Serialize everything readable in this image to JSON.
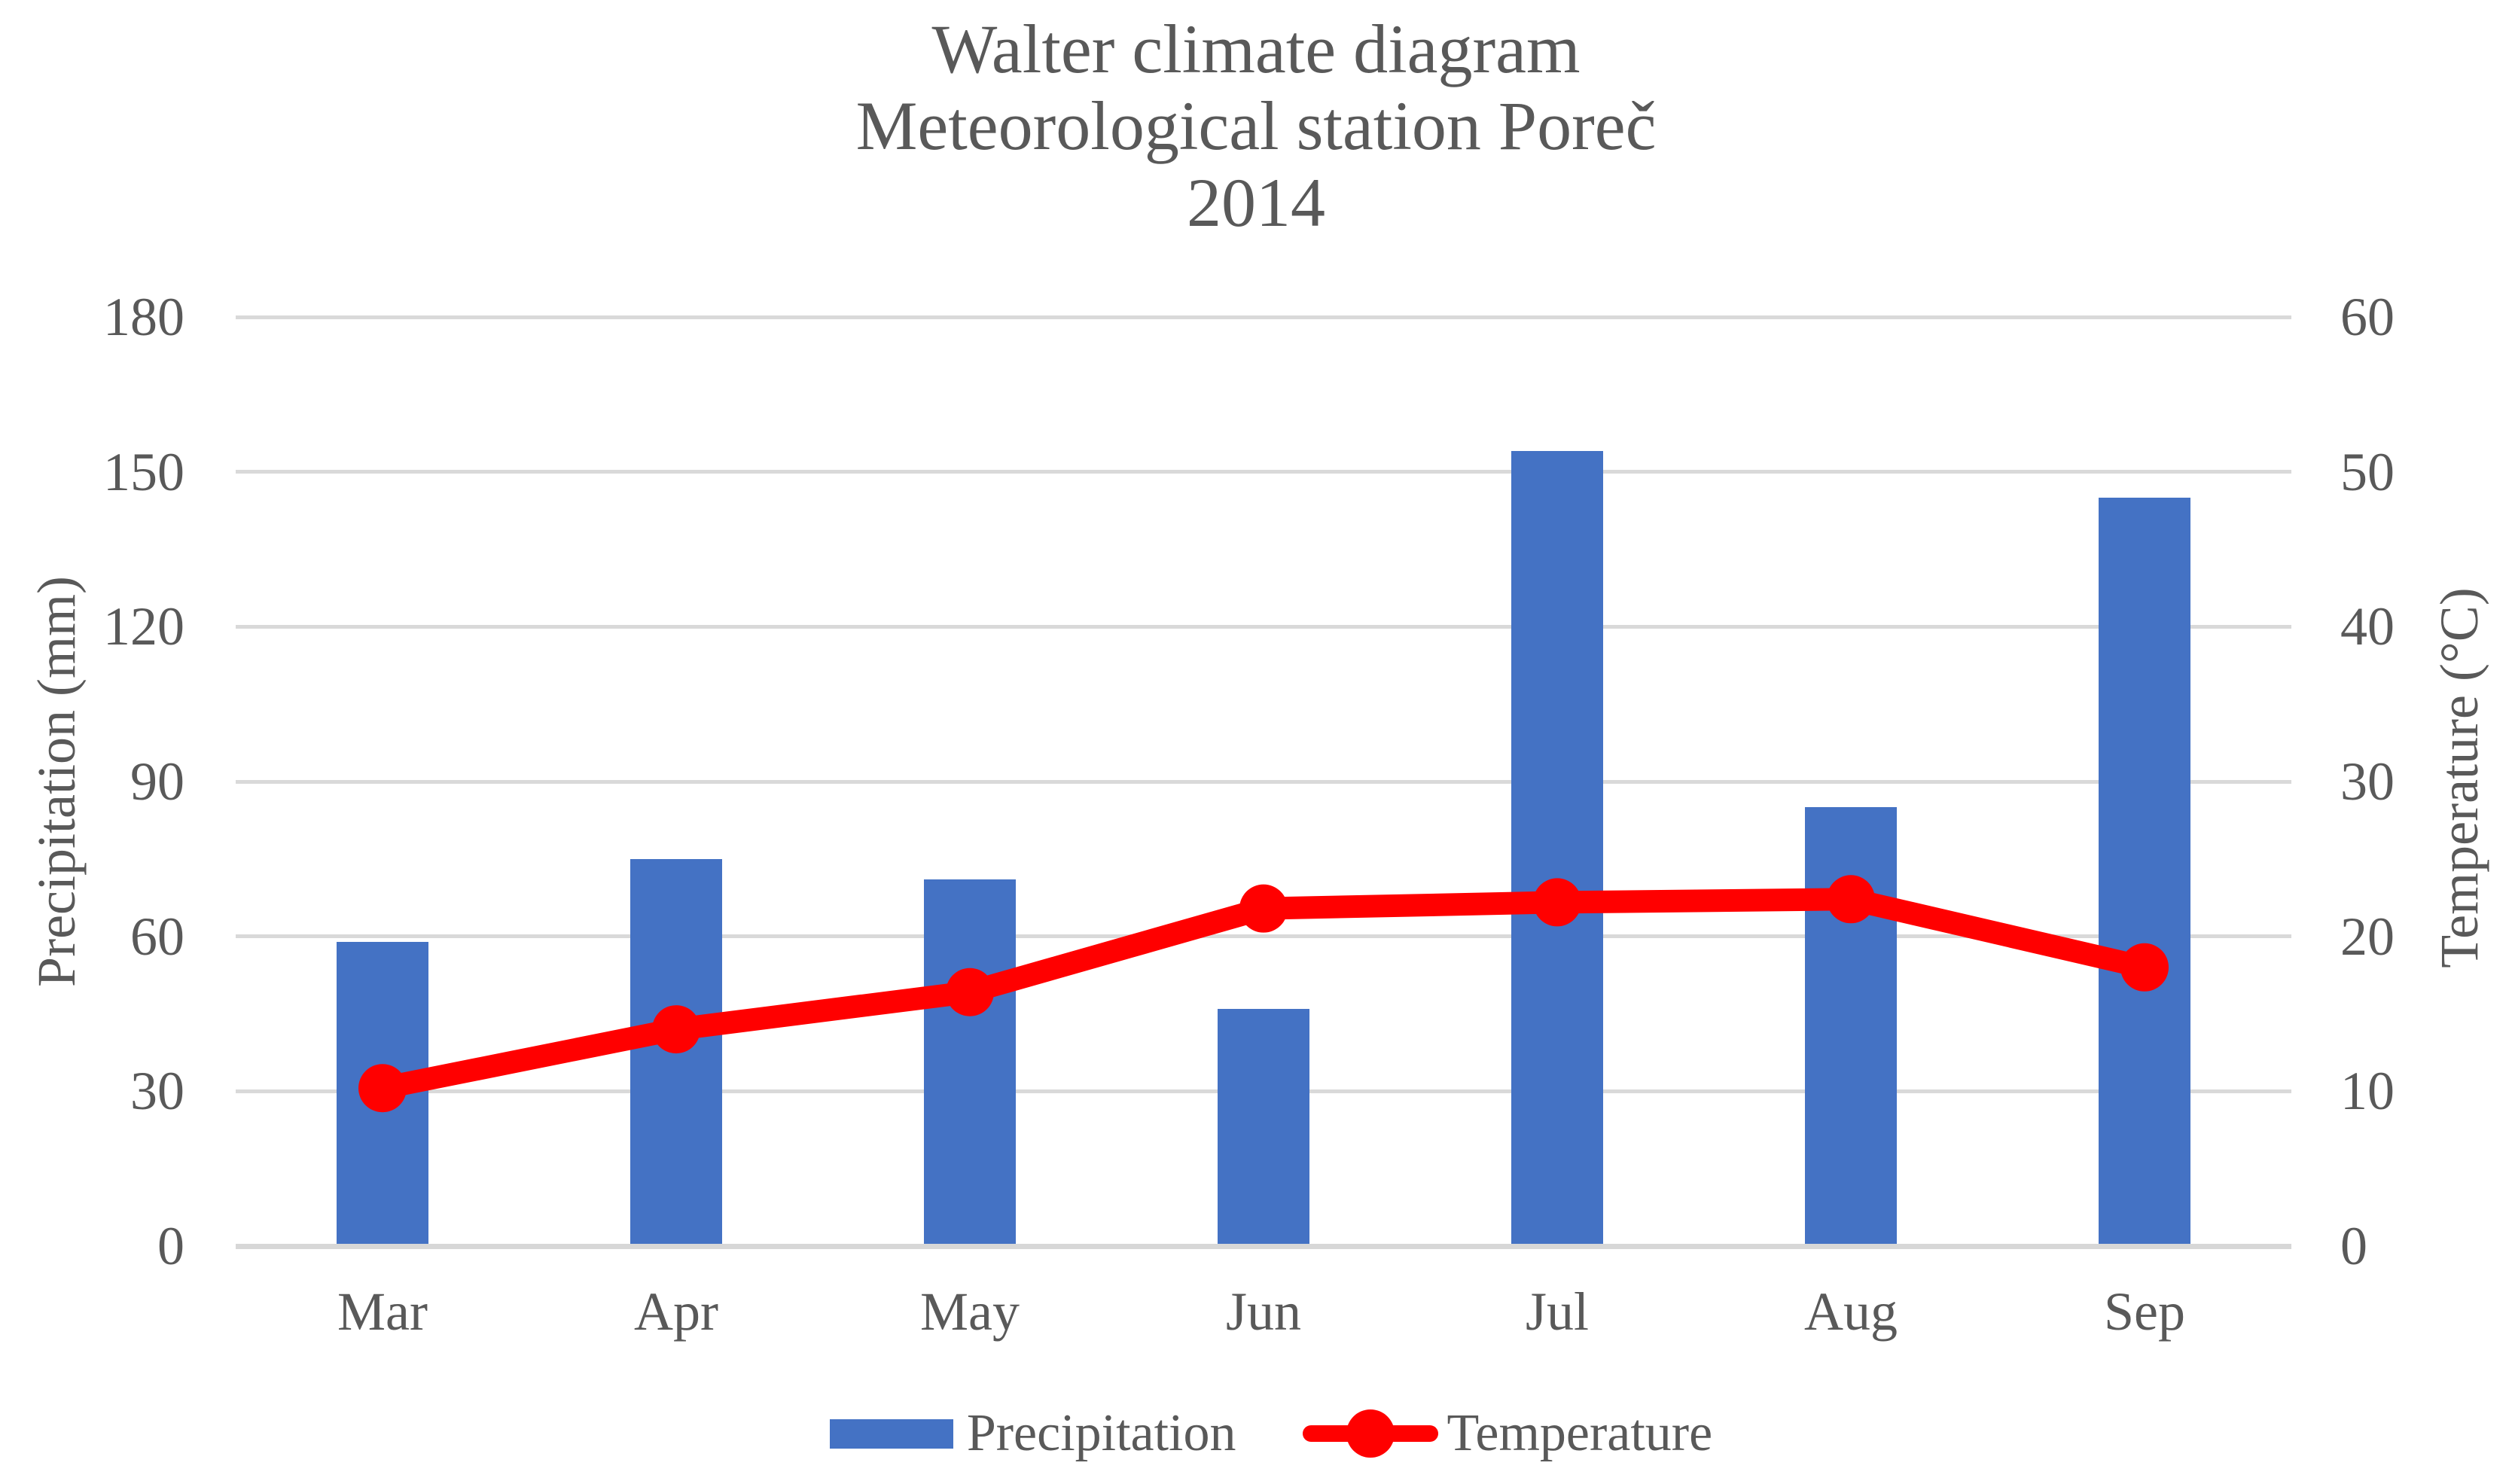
{
  "title": {
    "line1": "Walter climate diagram",
    "line2": "Meteorological station Poreč",
    "line3": "2014"
  },
  "colors": {
    "bar_blue": "#4472C4",
    "line_red": "#FF0000",
    "gridline": "#D9D9D9",
    "axis_line": "#D7D7D7",
    "text_gray": "#595959"
  },
  "chart_data": {
    "type": "bar",
    "subtype": "combo: bars (precipitation) + line with round markers (temperature), dual y-axes",
    "title": "Walter climate diagram — Meteorological station Poreč — 2014",
    "categories": [
      "Mar",
      "Apr",
      "May",
      "Jun",
      "Jul",
      "Aug",
      "Sep"
    ],
    "series": [
      {
        "name": "Precipitation",
        "chart_type": "bar",
        "y_axis": "left",
        "unit": "mm",
        "values": [
          59,
          75,
          71,
          46,
          154,
          85,
          145
        ]
      },
      {
        "name": "Temperature",
        "chart_type": "line",
        "y_axis": "right",
        "unit": "°C",
        "values": [
          10.2,
          14,
          16.4,
          21.8,
          22.2,
          22.4,
          18
        ]
      }
    ],
    "left_axis": {
      "label": "Precipitation (mm)",
      "min": 0,
      "max": 180,
      "step": 30,
      "tick_labels": [
        "180",
        "150",
        "120",
        "90",
        "60",
        "30",
        "0"
      ]
    },
    "right_axis": {
      "label": "Temperature (°C)",
      "min": 0,
      "max": 60,
      "step": 10,
      "tick_labels": [
        "60",
        "50",
        "40",
        "30",
        "20",
        "10",
        "0"
      ]
    },
    "x_axis": {
      "tick_labels": [
        "Mar",
        "Apr",
        "May",
        "Jun",
        "Jul",
        "Aug",
        "Sep"
      ]
    },
    "grid": "horizontal gridlines on, white background, no plot border",
    "legend": {
      "position": "bottom",
      "entries": [
        {
          "label": "Precipitation",
          "swatch": "blue-rectangle"
        },
        {
          "label": "Temperature",
          "swatch": "red-line-with-dot"
        }
      ]
    }
  }
}
